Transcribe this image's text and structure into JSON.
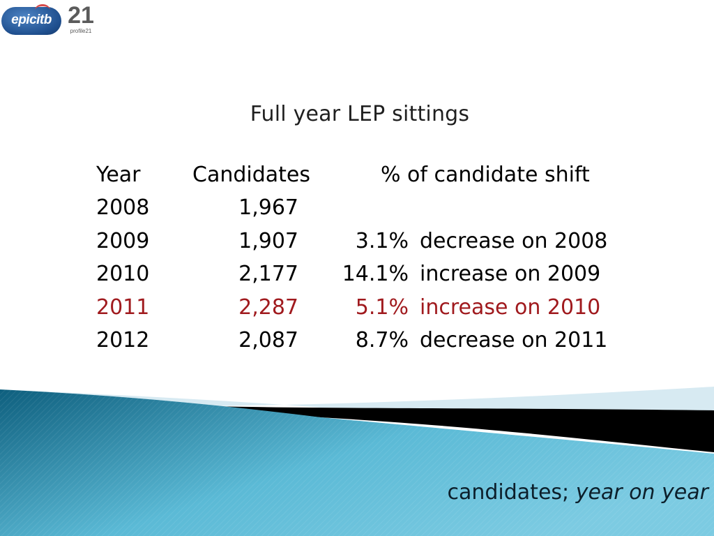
{
  "logos": {
    "epic_text": "epicitb",
    "p21_number": "21",
    "p21_text": "profile21"
  },
  "title": "Full year LEP sittings",
  "table": {
    "headers": {
      "year": "Year",
      "candidates": "Candidates",
      "shift": "% of candidate shift"
    },
    "rows": [
      {
        "year": "2008",
        "candidates": "1,967",
        "pct": "",
        "desc": ""
      },
      {
        "year": "2009",
        "candidates": "1,907",
        "pct": "3.1%",
        "desc": "decrease on 2008"
      },
      {
        "year": "2010",
        "candidates": "2,177",
        "pct": "14.1%",
        "desc": "increase on 2009"
      },
      {
        "year": "2011",
        "candidates": "2,287",
        "pct": "5.1%",
        "desc": "increase on 2010",
        "highlight": true
      },
      {
        "year": "2012",
        "candidates": "2,087",
        "pct": "8.7%",
        "desc": "decrease on 2011"
      }
    ],
    "highlight_color": "#a01a1e"
  },
  "footer": {
    "label_normal": "candidates; ",
    "label_italic": "year on year"
  },
  "colors": {
    "wave_dark": "#0e5f7e",
    "wave_light": "#5bbad6",
    "band_black": "#000000",
    "band_pale": "#d7eaf2"
  }
}
